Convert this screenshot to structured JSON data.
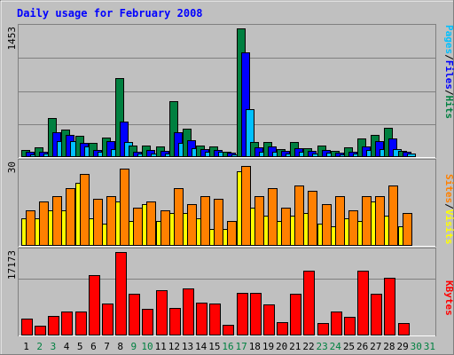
{
  "chart_data": [
    {
      "type": "bar",
      "title": "Daily usage for February 2008",
      "panel": "top",
      "ymax_label": "1453",
      "ylim": [
        0,
        1453
      ],
      "side_labels": [
        "Pages",
        "/",
        "Files",
        "/",
        "Hits"
      ],
      "side_colors": [
        "#00C0FF",
        "#000000",
        "#0000FF",
        "#000000",
        "#008040"
      ],
      "series": [
        {
          "name": "Hits",
          "color": "#008040",
          "values": [
            80,
            110,
            440,
            310,
            240,
            160,
            220,
            890,
            130,
            130,
            120,
            630,
            320,
            130,
            120,
            60,
            1453,
            170,
            170,
            90,
            170,
            100,
            130,
            70,
            110,
            210,
            250,
            330,
            70,
            0,
            0
          ]
        },
        {
          "name": "Files",
          "color": "#0000FF",
          "values": [
            60,
            60,
            280,
            250,
            160,
            80,
            180,
            400,
            60,
            80,
            70,
            280,
            190,
            90,
            80,
            50,
            1180,
            110,
            120,
            70,
            100,
            70,
            80,
            50,
            60,
            120,
            180,
            210,
            60,
            0,
            0
          ]
        },
        {
          "name": "Pages",
          "color": "#00C0FF",
          "values": [
            30,
            40,
            180,
            180,
            120,
            60,
            90,
            170,
            40,
            40,
            40,
            160,
            100,
            60,
            60,
            30,
            540,
            60,
            60,
            40,
            60,
            40,
            50,
            30,
            40,
            80,
            90,
            90,
            40,
            0,
            0
          ]
        }
      ]
    },
    {
      "type": "bar",
      "panel": "middle",
      "ymax_label": "30",
      "ylim": [
        0,
        30
      ],
      "side_labels": [
        "Sites",
        "/",
        "Visits"
      ],
      "side_colors": [
        "#FF8000",
        "#000000",
        "#FFFF00"
      ],
      "series": [
        {
          "name": "Visits",
          "color": "#FFFF00",
          "values": [
            10,
            10,
            13,
            13,
            23,
            10,
            8,
            16,
            9,
            15,
            9,
            12,
            12,
            10,
            6,
            6,
            27,
            14,
            11,
            9,
            11,
            12,
            8,
            7,
            10,
            9,
            16,
            11,
            7,
            0,
            0
          ]
        },
        {
          "name": "Sites",
          "color": "#FF8000",
          "values": [
            13,
            16,
            18,
            21,
            26,
            17,
            18,
            28,
            14,
            16,
            13,
            21,
            15,
            18,
            17,
            9,
            29,
            18,
            21,
            14,
            22,
            20,
            15,
            18,
            13,
            18,
            18,
            22,
            12,
            0,
            0
          ]
        }
      ]
    },
    {
      "type": "bar",
      "panel": "bottom",
      "ymax_label": "17173",
      "ylim": [
        0,
        17173
      ],
      "side_labels": [
        "KBytes"
      ],
      "side_colors": [
        "#FF0000"
      ],
      "series": [
        {
          "name": "KBytes",
          "color": "#FF0000",
          "values": [
            3400,
            2100,
            4000,
            4900,
            5000,
            12500,
            6600,
            17173,
            8500,
            5500,
            9400,
            5600,
            9700,
            6800,
            6600,
            2200,
            8800,
            8800,
            6400,
            2800,
            8500,
            13400,
            2500,
            4900,
            3900,
            13300,
            8500,
            11900,
            2600,
            0,
            0
          ]
        }
      ]
    }
  ],
  "x_labels": [
    "1",
    "2",
    "3",
    "4",
    "5",
    "6",
    "7",
    "8",
    "9",
    "10",
    "11",
    "12",
    "13",
    "14",
    "15",
    "16",
    "17",
    "18",
    "19",
    "20",
    "21",
    "22",
    "23",
    "24",
    "25",
    "26",
    "27",
    "28",
    "29",
    "30",
    "31"
  ],
  "weekend_days": [
    "2",
    "3",
    "9",
    "10",
    "16",
    "17",
    "23",
    "24",
    "30",
    "31"
  ],
  "colors": {
    "background": "#C0C0C0",
    "title": "#0000FF",
    "weekday_label": "#000000",
    "weekend_label": "#008040",
    "grid": "#808080"
  }
}
